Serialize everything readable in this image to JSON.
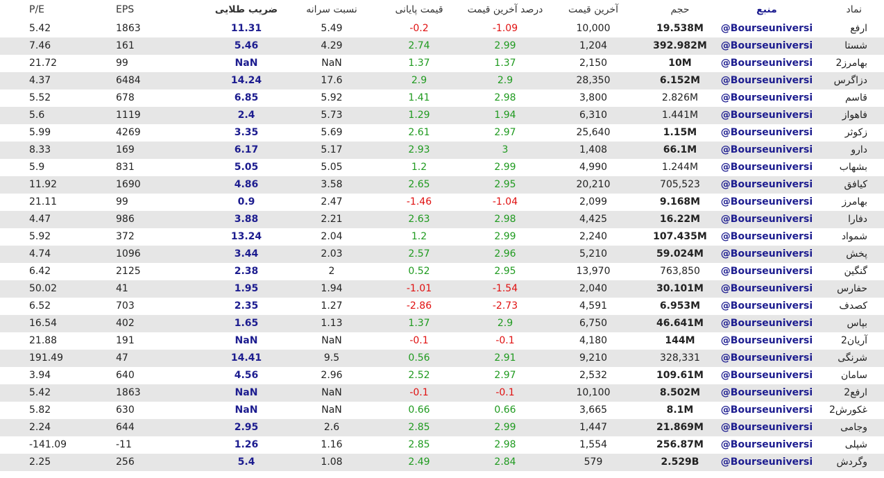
{
  "table": {
    "header": [
      "نماد",
      "منبع",
      "حجم",
      "آخرین قیمت",
      "درصد آخرین قیمت",
      "قیمت پایانی",
      "نسبت سرانه",
      "ضریب طلایی",
      "EPS",
      "P/E"
    ],
    "rows": [
      [
        "ارفع",
        "@Bourseuniversi",
        "19.538M",
        "10,000",
        "-1.09",
        "-0.2",
        "5.49",
        "11.31",
        "1863",
        "5.42"
      ],
      [
        "شستا",
        "@Bourseuniversi",
        "392.982M",
        "1,204",
        "2.99",
        "2.74",
        "4.29",
        "5.46",
        "161",
        "7.46"
      ],
      [
        "بهامرز2",
        "@Bourseuniversi",
        "10M",
        "2,150",
        "1.37",
        "1.37",
        "NaN",
        "NaN",
        "99",
        "21.72"
      ],
      [
        "دزاگرس",
        "@Bourseuniversi",
        "6.152M",
        "28,350",
        "2.9",
        "2.9",
        "17.6",
        "14.24",
        "6484",
        "4.37"
      ],
      [
        "قاسم",
        "@Bourseuniversi",
        "2.826M",
        "3,800",
        "2.98",
        "1.41",
        "5.92",
        "6.85",
        "678",
        "5.52"
      ],
      [
        "فاهواز",
        "@Bourseuniversi",
        "1.441M",
        "6,310",
        "1.94",
        "1.29",
        "5.73",
        "2.4",
        "1119",
        "5.6"
      ],
      [
        "زکوثر",
        "@Bourseuniversi",
        "1.15M",
        "25,640",
        "2.97",
        "2.61",
        "5.69",
        "3.35",
        "4269",
        "5.99"
      ],
      [
        "دارو",
        "@Bourseuniversi",
        "66.1M",
        "1,408",
        "3",
        "2.93",
        "5.17",
        "6.17",
        "169",
        "8.33"
      ],
      [
        "بشهاب",
        "@Bourseuniversi",
        "1.244M",
        "4,990",
        "2.99",
        "1.2",
        "5.05",
        "5.05",
        "831",
        "5.9"
      ],
      [
        "کیافق",
        "@Bourseuniversi",
        "705,523",
        "20,210",
        "2.95",
        "2.65",
        "3.58",
        "4.86",
        "1690",
        "11.92"
      ],
      [
        "بهامرز",
        "@Bourseuniversi",
        "9.168M",
        "2,099",
        "-1.04",
        "-1.46",
        "2.47",
        "0.9",
        "99",
        "21.11"
      ],
      [
        "دفارا",
        "@Bourseuniversi",
        "16.22M",
        "4,425",
        "2.98",
        "2.63",
        "2.21",
        "3.88",
        "986",
        "4.47"
      ],
      [
        "شمواد",
        "@Bourseuniversi",
        "107.435M",
        "2,240",
        "2.99",
        "1.2",
        "2.04",
        "13.24",
        "372",
        "5.92"
      ],
      [
        "پخش",
        "@Bourseuniversi",
        "59.024M",
        "5,210",
        "2.96",
        "2.57",
        "2.03",
        "3.44",
        "1096",
        "4.74"
      ],
      [
        "گنگین",
        "@Bourseuniversi",
        "763,850",
        "13,970",
        "2.95",
        "0.52",
        "2",
        "2.38",
        "2125",
        "6.42"
      ],
      [
        "حفارس",
        "@Bourseuniversi",
        "30.101M",
        "2,040",
        "-1.54",
        "-1.01",
        "1.94",
        "1.95",
        "41",
        "50.02"
      ],
      [
        "کصدف",
        "@Bourseuniversi",
        "6.953M",
        "4,591",
        "-2.73",
        "-2.86",
        "1.27",
        "2.35",
        "703",
        "6.52"
      ],
      [
        "بپاس",
        "@Bourseuniversi",
        "46.641M",
        "6,750",
        "2.9",
        "1.37",
        "1.13",
        "1.65",
        "402",
        "16.54"
      ],
      [
        "آریان2",
        "@Bourseuniversi",
        "144M",
        "4,180",
        "-0.1",
        "-0.1",
        "NaN",
        "NaN",
        "191",
        "21.88"
      ],
      [
        "شرنگی",
        "@Bourseuniversi",
        "328,331",
        "9,210",
        "2.91",
        "0.56",
        "9.5",
        "14.41",
        "47",
        "191.49"
      ],
      [
        "سامان",
        "@Bourseuniversi",
        "109.61M",
        "2,532",
        "2.97",
        "2.52",
        "2.96",
        "4.56",
        "640",
        "3.94"
      ],
      [
        "ارفع2",
        "@Bourseuniversi",
        "8.502M",
        "10,100",
        "-0.1",
        "-0.1",
        "NaN",
        "NaN",
        "1863",
        "5.42"
      ],
      [
        "غکورش2",
        "@Bourseuniversi",
        "8.1M",
        "3,665",
        "0.66",
        "0.66",
        "NaN",
        "NaN",
        "630",
        "5.82"
      ],
      [
        "وجامی",
        "@Bourseuniversi",
        "21.869M",
        "1,447",
        "2.99",
        "2.85",
        "2.6",
        "2.95",
        "644",
        "2.24"
      ],
      [
        "شپلی",
        "@Bourseuniversi",
        "256.87M",
        "1,554",
        "2.98",
        "2.85",
        "1.16",
        "1.26",
        "-11",
        "-141.09"
      ],
      [
        "وگردش",
        "@Bourseuniversi",
        "2.529B",
        "579",
        "2.84",
        "2.49",
        "1.08",
        "5.4",
        "256",
        "2.25"
      ]
    ],
    "volume_bold": [
      true,
      true,
      true,
      true,
      false,
      false,
      true,
      true,
      false,
      false,
      true,
      true,
      true,
      true,
      false,
      true,
      true,
      true,
      true,
      false,
      true,
      true,
      true,
      true,
      true,
      true
    ],
    "colors": {
      "positive": "#1f9a1f",
      "negative": "#e01010",
      "emphasis": "#1c1c8f",
      "stripe": "#e6e6e6"
    }
  }
}
